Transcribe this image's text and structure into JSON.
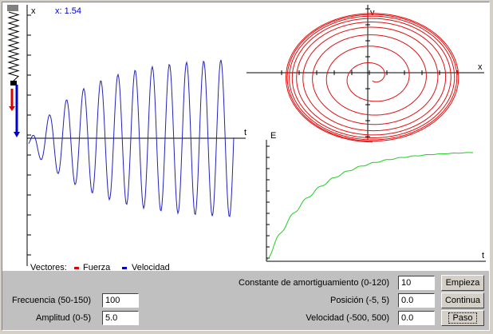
{
  "readout": {
    "x_label": "x",
    "x_value": "x: 1.54"
  },
  "time_plot": {
    "t_label": "t"
  },
  "phase_plot": {
    "x_label": "x",
    "v_label": "v"
  },
  "energy_plot": {
    "e_label": "E",
    "t_label": "t"
  },
  "legend": {
    "title": "Vectores:",
    "force": "Fuerza",
    "velocity": "Velocidad"
  },
  "controls": {
    "damping_label": "Constante de amortiguamiento (0-120)",
    "damping_value": "10",
    "frequency_label": "Frecuencia (50-150)",
    "frequency_value": "100",
    "amplitude_label": "Amplitud (0-5)",
    "amplitude_value": "5.0",
    "position_label": "Posición (-5, 5)",
    "position_value": "0.0",
    "velocity_label": "Velocidad (-500, 500)",
    "velocity_value": "0.0",
    "start_button": "Empieza",
    "continue_button": "Continua",
    "step_button": "Paso"
  },
  "colors": {
    "position_curve": "#2222bb",
    "phase_curve": "#dd1111",
    "energy_curve": "#22cc22",
    "force_vector": "#dd0000",
    "velocity_vector": "#0000cc"
  }
}
